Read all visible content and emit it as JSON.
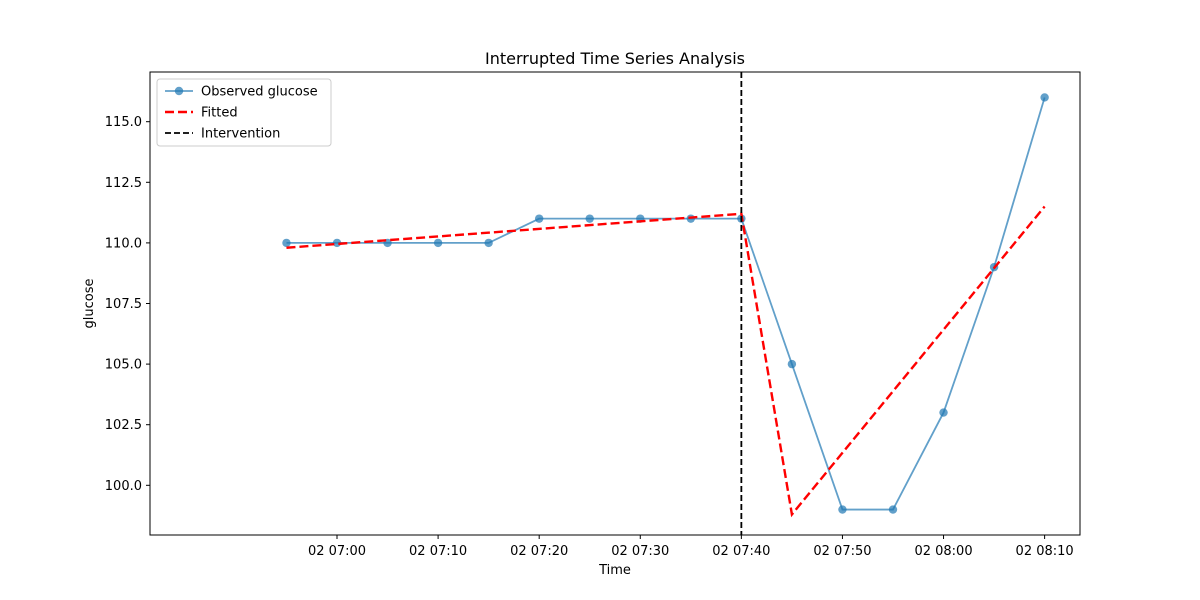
{
  "chart_data": {
    "type": "line",
    "title": "Interrupted Time Series Analysis",
    "xlabel": "Time",
    "ylabel": "glucose",
    "x_ticks": [
      "02 07:00",
      "02 07:10",
      "02 07:20",
      "02 07:30",
      "02 07:40",
      "02 07:50",
      "02 08:00",
      "02 08:10"
    ],
    "x_tick_values": [
      420,
      430,
      440,
      450,
      460,
      470,
      480,
      490
    ],
    "x_range": [
      401.5,
      493.5
    ],
    "y_ticks": [
      "100.0",
      "102.5",
      "105.0",
      "107.5",
      "110.0",
      "112.5",
      "115.0"
    ],
    "y_tick_values": [
      100.0,
      102.5,
      105.0,
      107.5,
      110.0,
      112.5,
      115.0
    ],
    "ylim": [
      97.95,
      117.05
    ],
    "grid": false,
    "legend_position": "top-left",
    "intervention_x": 460,
    "series": [
      {
        "name": "Observed glucose",
        "style": "line-marker",
        "color": "#1f77b4",
        "x": [
          415,
          420,
          425,
          430,
          435,
          440,
          445,
          450,
          455,
          460,
          465,
          470,
          475,
          480,
          485,
          490
        ],
        "y": [
          110,
          110,
          110,
          110,
          110,
          111,
          111,
          111,
          111,
          111,
          105,
          99,
          99,
          103,
          109,
          116
        ]
      },
      {
        "name": "Fitted",
        "style": "dashed",
        "color": "#ff0000",
        "x": [
          415,
          460,
          465,
          490
        ],
        "y": [
          109.8,
          111.2,
          98.8,
          111.5
        ]
      },
      {
        "name": "Intervention",
        "style": "dashed-vline",
        "color": "#000000"
      }
    ]
  }
}
